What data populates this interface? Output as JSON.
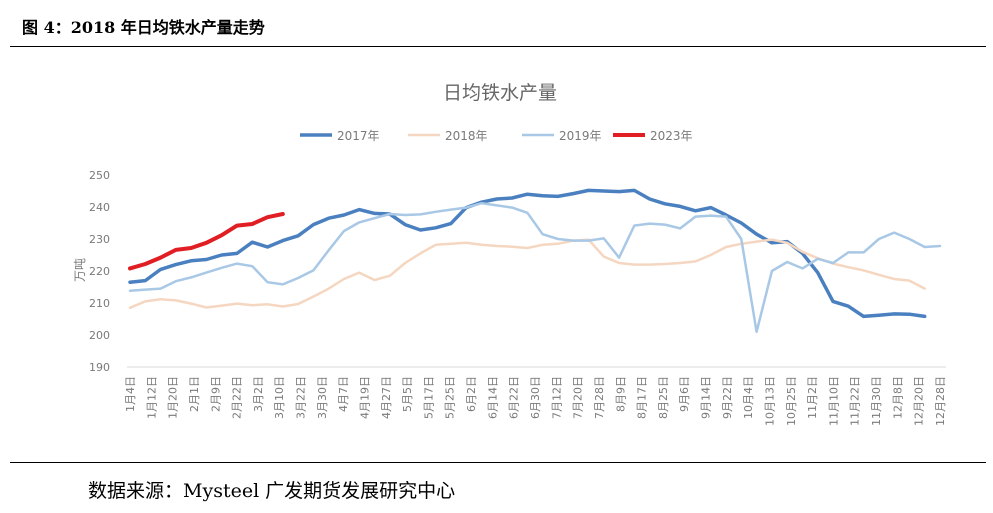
{
  "figure_label": "图 4：2018 年日均铁水产量走势",
  "source": "数据来源：Mysteel  广发期货发展研究中心",
  "chart_data": {
    "type": "line",
    "title": "日均铁水产量",
    "ylabel": "万吨",
    "xlabel": "",
    "ylim": [
      190,
      250
    ],
    "yticks": [
      190,
      200,
      210,
      220,
      230,
      240,
      250
    ],
    "grid": false,
    "legend_position": "top",
    "categories": [
      "1月4日",
      "1月12日",
      "1月20日",
      "2月1日",
      "2月9日",
      "2月22日",
      "3月2日",
      "3月10日",
      "3月22日",
      "3月30日",
      "4月7日",
      "4月19日",
      "4月27日",
      "5月5日",
      "5月17日",
      "5月25日",
      "6月2日",
      "6月14日",
      "6月22日",
      "6月30日",
      "7月12日",
      "7月20日",
      "7月28日",
      "8月9日",
      "8月17日",
      "8月25日",
      "9月6日",
      "9月14日",
      "9月22日",
      "10月4日",
      "10月13日",
      "10月25日",
      "11月2日",
      "11月10日",
      "11月22日",
      "11月30日",
      "12月8日",
      "12月20日",
      "12月28日"
    ],
    "series": [
      {
        "name": "2017年",
        "color": "#4a80c0",
        "width": 3.5,
        "points": [
          [
            0,
            216.5
          ],
          [
            1,
            217
          ],
          [
            2,
            220.5
          ],
          [
            3,
            222
          ],
          [
            4,
            223.2
          ],
          [
            5,
            223.6
          ],
          [
            6,
            225
          ],
          [
            7,
            225.5
          ],
          [
            8,
            229
          ],
          [
            9,
            227.5
          ],
          [
            10,
            229.5
          ],
          [
            11,
            231
          ],
          [
            12,
            234.5
          ],
          [
            13,
            236.5
          ],
          [
            14,
            237.5
          ],
          [
            15,
            239.2
          ],
          [
            16,
            238
          ],
          [
            17,
            237.8
          ],
          [
            18,
            234.5
          ],
          [
            19,
            232.8
          ],
          [
            20,
            233.5
          ],
          [
            21,
            234.8
          ],
          [
            22,
            239.8
          ],
          [
            23,
            241.5
          ],
          [
            24,
            242.5
          ],
          [
            25,
            242.8
          ],
          [
            26,
            244
          ],
          [
            27,
            243.5
          ],
          [
            28,
            243.3
          ],
          [
            29,
            244.2
          ],
          [
            30,
            245.2
          ],
          [
            31,
            245
          ],
          [
            32,
            244.8
          ],
          [
            33,
            245.2
          ],
          [
            34,
            242.5
          ],
          [
            35,
            241
          ],
          [
            36,
            240.2
          ],
          [
            37,
            238.8
          ],
          [
            38,
            239.8
          ],
          [
            39,
            237.5
          ],
          [
            40,
            235
          ],
          [
            41,
            231.5
          ],
          [
            42,
            228.8
          ],
          [
            43,
            229.2
          ],
          [
            44,
            225.5
          ],
          [
            45,
            219.5
          ],
          [
            46,
            210.5
          ],
          [
            47,
            209
          ],
          [
            48,
            205.8
          ],
          [
            49,
            206.2
          ],
          [
            50,
            206.6
          ],
          [
            51,
            206.5
          ],
          [
            52,
            205.8
          ]
        ]
      },
      {
        "name": "2018年",
        "color": "#f5d6c0",
        "width": 2.5,
        "points": [
          [
            0,
            208.5
          ],
          [
            1,
            210.5
          ],
          [
            2,
            211.2
          ],
          [
            3,
            210.8
          ],
          [
            4,
            209.8
          ],
          [
            5,
            208.6
          ],
          [
            6,
            209.2
          ],
          [
            7,
            209.8
          ],
          [
            8,
            209.3
          ],
          [
            9,
            209.6
          ],
          [
            10,
            208.9
          ],
          [
            11,
            209.7
          ],
          [
            12,
            212
          ],
          [
            13,
            214.5
          ],
          [
            14,
            217.5
          ],
          [
            15,
            219.5
          ],
          [
            16,
            217.2
          ],
          [
            17,
            218.5
          ],
          [
            18,
            222.5
          ],
          [
            19,
            225.5
          ],
          [
            20,
            228.2
          ],
          [
            21,
            228.5
          ],
          [
            22,
            228.8
          ],
          [
            23,
            228.2
          ],
          [
            24,
            227.8
          ],
          [
            25,
            227.6
          ],
          [
            26,
            227.2
          ],
          [
            27,
            228.2
          ],
          [
            28,
            228.5
          ],
          [
            29,
            229.5
          ],
          [
            30,
            229.8
          ],
          [
            31,
            224.5
          ],
          [
            32,
            222.5
          ],
          [
            33,
            222
          ],
          [
            34,
            222
          ],
          [
            35,
            222.2
          ],
          [
            36,
            222.5
          ],
          [
            37,
            223
          ],
          [
            38,
            225
          ],
          [
            39,
            227.5
          ],
          [
            40,
            228.5
          ],
          [
            41,
            229.2
          ],
          [
            42,
            229.8
          ],
          [
            43,
            228.8
          ],
          [
            44,
            226
          ],
          [
            45,
            224
          ],
          [
            46,
            222.3
          ],
          [
            47,
            221.2
          ],
          [
            48,
            220.2
          ],
          [
            49,
            218.8
          ],
          [
            50,
            217.5
          ],
          [
            51,
            217
          ],
          [
            52,
            214.5
          ]
        ]
      },
      {
        "name": "2019年",
        "color": "#a8c8e6",
        "width": 2.5,
        "points": [
          [
            0,
            213.8
          ],
          [
            1,
            214.2
          ],
          [
            2,
            214.5
          ],
          [
            3,
            216.8
          ],
          [
            4,
            218
          ],
          [
            5,
            219.5
          ],
          [
            6,
            221
          ],
          [
            7,
            222.3
          ],
          [
            8,
            221.5
          ],
          [
            9,
            216.5
          ],
          [
            10,
            215.8
          ],
          [
            11,
            217.8
          ],
          [
            12,
            220.2
          ],
          [
            13,
            226.5
          ],
          [
            14,
            232.5
          ],
          [
            15,
            235.2
          ],
          [
            16,
            236.5
          ],
          [
            17,
            237.8
          ],
          [
            18,
            237.5
          ],
          [
            19,
            237.7
          ],
          [
            20,
            238.5
          ],
          [
            21,
            239.2
          ],
          [
            22,
            239.8
          ],
          [
            23,
            241.2
          ],
          [
            24,
            240.5
          ],
          [
            25,
            239.8
          ],
          [
            26,
            238.2
          ],
          [
            27,
            231.5
          ],
          [
            28,
            230
          ],
          [
            29,
            229.5
          ],
          [
            30,
            229.5
          ],
          [
            31,
            230.2
          ],
          [
            32,
            224.2
          ],
          [
            33,
            234.2
          ],
          [
            34,
            234.8
          ],
          [
            35,
            234.5
          ],
          [
            36,
            233.3
          ],
          [
            37,
            237
          ],
          [
            38,
            237.3
          ],
          [
            39,
            237
          ],
          [
            40,
            230
          ],
          [
            41,
            201
          ],
          [
            42,
            220
          ],
          [
            43,
            222.8
          ],
          [
            44,
            220.8
          ],
          [
            45,
            223.8
          ],
          [
            46,
            222.5
          ],
          [
            47,
            225.8
          ],
          [
            48,
            225.8
          ],
          [
            49,
            230
          ],
          [
            50,
            232
          ],
          [
            51,
            230
          ],
          [
            52,
            227.5
          ],
          [
            53,
            227.8
          ]
        ]
      },
      {
        "name": "2023年",
        "color": "#e01e24",
        "width": 4,
        "points": [
          [
            0,
            220.8
          ],
          [
            1,
            222.2
          ],
          [
            2,
            224.2
          ],
          [
            3,
            226.6
          ],
          [
            4,
            227.2
          ],
          [
            5,
            228.8
          ],
          [
            6,
            231.2
          ],
          [
            7,
            234.2
          ],
          [
            8,
            234.7
          ],
          [
            9,
            236.8
          ],
          [
            10,
            237.8
          ]
        ]
      }
    ]
  }
}
